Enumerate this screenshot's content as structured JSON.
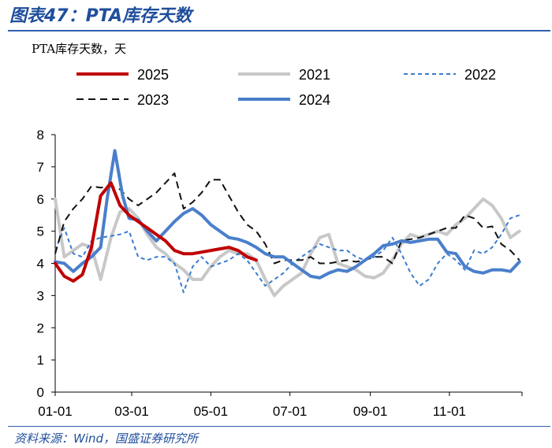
{
  "header": {
    "title": "图表47：PTA库存天数"
  },
  "footer": {
    "source": "资料来源：Wind，国盛证券研究所"
  },
  "chart_data": {
    "type": "line",
    "unit_label": "PTA库存天数，天",
    "ylim": [
      0,
      8
    ],
    "yticks": [
      "0",
      "1",
      "2",
      "3",
      "4",
      "5",
      "6",
      "7",
      "8"
    ],
    "xticks": [
      "01-01",
      "03-01",
      "05-01",
      "07-01",
      "09-01",
      "11-01"
    ],
    "xtick_days": [
      0,
      59,
      120,
      181,
      243,
      304
    ],
    "xdomain": [
      0,
      360
    ],
    "legend": "top",
    "series": [
      {
        "name": "2025",
        "color": "#c00000",
        "dash": "solid",
        "width": 4,
        "points": [
          [
            0,
            4.0
          ],
          [
            7,
            3.6
          ],
          [
            14,
            3.45
          ],
          [
            21,
            3.65
          ],
          [
            28,
            4.5
          ],
          [
            35,
            6.1
          ],
          [
            43,
            6.5
          ],
          [
            50,
            5.8
          ],
          [
            57,
            5.5
          ],
          [
            64,
            5.3
          ],
          [
            71,
            5.1
          ],
          [
            78,
            4.9
          ],
          [
            85,
            4.7
          ],
          [
            92,
            4.4
          ],
          [
            99,
            4.3
          ],
          [
            106,
            4.3
          ],
          [
            113,
            4.35
          ],
          [
            120,
            4.4
          ],
          [
            127,
            4.45
          ],
          [
            134,
            4.5
          ],
          [
            141,
            4.4
          ],
          [
            148,
            4.2
          ],
          [
            155,
            4.1
          ]
        ]
      },
      {
        "name": "2021",
        "color": "#c8c8c8",
        "dash": "solid",
        "width": 4,
        "points": [
          [
            0,
            6.0
          ],
          [
            7,
            4.2
          ],
          [
            14,
            4.4
          ],
          [
            21,
            4.6
          ],
          [
            28,
            4.5
          ],
          [
            35,
            3.5
          ],
          [
            43,
            4.8
          ],
          [
            50,
            5.6
          ],
          [
            57,
            5.7
          ],
          [
            64,
            5.4
          ],
          [
            71,
            4.9
          ],
          [
            78,
            4.5
          ],
          [
            85,
            4.3
          ],
          [
            92,
            4.0
          ],
          [
            99,
            3.8
          ],
          [
            106,
            3.5
          ],
          [
            113,
            3.5
          ],
          [
            120,
            3.9
          ],
          [
            127,
            4.2
          ],
          [
            134,
            4.4
          ],
          [
            141,
            4.3
          ],
          [
            148,
            4.3
          ],
          [
            155,
            4.1
          ],
          [
            162,
            3.5
          ],
          [
            169,
            3.0
          ],
          [
            176,
            3.3
          ],
          [
            183,
            3.5
          ],
          [
            190,
            3.7
          ],
          [
            197,
            4.3
          ],
          [
            204,
            4.8
          ],
          [
            211,
            4.9
          ],
          [
            218,
            4.0
          ],
          [
            225,
            3.9
          ],
          [
            232,
            3.8
          ],
          [
            239,
            3.6
          ],
          [
            246,
            3.55
          ],
          [
            253,
            3.7
          ],
          [
            260,
            4.1
          ],
          [
            267,
            4.6
          ],
          [
            274,
            4.9
          ],
          [
            281,
            4.8
          ],
          [
            288,
            4.9
          ],
          [
            295,
            5.0
          ],
          [
            302,
            4.9
          ],
          [
            309,
            5.2
          ],
          [
            316,
            5.4
          ],
          [
            323,
            5.7
          ],
          [
            330,
            6.0
          ],
          [
            337,
            5.8
          ],
          [
            344,
            5.4
          ],
          [
            351,
            4.8
          ],
          [
            358,
            5.0
          ]
        ]
      },
      {
        "name": "2022",
        "color": "#3a7cd0",
        "dash": "5,4",
        "width": 2,
        "points": [
          [
            0,
            4.4
          ],
          [
            7,
            5.1
          ],
          [
            14,
            4.3
          ],
          [
            21,
            4.2
          ],
          [
            28,
            4.7
          ],
          [
            35,
            4.8
          ],
          [
            43,
            4.85
          ],
          [
            50,
            4.9
          ],
          [
            57,
            5.0
          ],
          [
            64,
            4.2
          ],
          [
            71,
            4.1
          ],
          [
            78,
            4.2
          ],
          [
            85,
            4.2
          ],
          [
            92,
            4.0
          ],
          [
            99,
            3.1
          ],
          [
            106,
            3.9
          ],
          [
            113,
            4.2
          ],
          [
            120,
            3.9
          ],
          [
            127,
            4.0
          ],
          [
            134,
            4.1
          ],
          [
            141,
            4.3
          ],
          [
            148,
            4.1
          ],
          [
            155,
            3.7
          ],
          [
            162,
            3.3
          ],
          [
            169,
            3.5
          ],
          [
            176,
            3.7
          ],
          [
            183,
            4.0
          ],
          [
            190,
            4.2
          ],
          [
            197,
            4.4
          ],
          [
            204,
            4.6
          ],
          [
            211,
            4.5
          ],
          [
            218,
            4.4
          ],
          [
            225,
            4.4
          ],
          [
            232,
            4.2
          ],
          [
            239,
            4.1
          ],
          [
            246,
            4.2
          ],
          [
            253,
            4.4
          ],
          [
            260,
            4.8
          ],
          [
            267,
            4.3
          ],
          [
            274,
            3.7
          ],
          [
            281,
            3.3
          ],
          [
            288,
            3.5
          ],
          [
            295,
            4.0
          ],
          [
            302,
            4.3
          ],
          [
            309,
            4.1
          ],
          [
            316,
            3.8
          ],
          [
            323,
            4.4
          ],
          [
            330,
            4.3
          ],
          [
            337,
            4.5
          ],
          [
            344,
            4.9
          ],
          [
            351,
            5.4
          ],
          [
            358,
            5.5
          ]
        ]
      },
      {
        "name": "2023",
        "color": "#111111",
        "dash": "9,6",
        "width": 2,
        "points": [
          [
            0,
            4.3
          ],
          [
            7,
            5.3
          ],
          [
            14,
            5.7
          ],
          [
            21,
            6.0
          ],
          [
            28,
            6.4
          ],
          [
            35,
            6.35
          ],
          [
            43,
            6.4
          ],
          [
            50,
            6.3
          ],
          [
            57,
            6.0
          ],
          [
            64,
            5.8
          ],
          [
            71,
            6.0
          ],
          [
            78,
            6.2
          ],
          [
            85,
            6.5
          ],
          [
            92,
            6.8
          ],
          [
            99,
            5.7
          ],
          [
            106,
            5.9
          ],
          [
            113,
            6.2
          ],
          [
            120,
            6.6
          ],
          [
            127,
            6.6
          ],
          [
            134,
            6.1
          ],
          [
            141,
            5.6
          ],
          [
            148,
            5.2
          ],
          [
            155,
            5.0
          ],
          [
            162,
            4.6
          ],
          [
            169,
            4.0
          ],
          [
            176,
            4.1
          ],
          [
            183,
            4.1
          ],
          [
            190,
            4.1
          ],
          [
            197,
            4.2
          ],
          [
            204,
            4.0
          ],
          [
            211,
            4.0
          ],
          [
            218,
            4.05
          ],
          [
            225,
            4.1
          ],
          [
            232,
            4.05
          ],
          [
            239,
            4.1
          ],
          [
            246,
            4.2
          ],
          [
            253,
            4.2
          ],
          [
            260,
            4.0
          ],
          [
            267,
            4.7
          ],
          [
            274,
            4.75
          ],
          [
            281,
            4.8
          ],
          [
            288,
            4.9
          ],
          [
            295,
            5.0
          ],
          [
            302,
            5.1
          ],
          [
            309,
            5.1
          ],
          [
            316,
            5.5
          ],
          [
            323,
            5.4
          ],
          [
            330,
            5.1
          ],
          [
            337,
            5.15
          ],
          [
            344,
            4.6
          ],
          [
            351,
            4.4
          ],
          [
            358,
            4.1
          ]
        ]
      },
      {
        "name": "2024",
        "color": "#4a7fcb",
        "dash": "solid",
        "width": 4,
        "points": [
          [
            0,
            4.05
          ],
          [
            7,
            4.0
          ],
          [
            14,
            3.75
          ],
          [
            21,
            4.0
          ],
          [
            28,
            4.2
          ],
          [
            35,
            4.5
          ],
          [
            40,
            6.0
          ],
          [
            46,
            7.5
          ],
          [
            52,
            6.1
          ],
          [
            57,
            5.4
          ],
          [
            64,
            5.35
          ],
          [
            71,
            5.0
          ],
          [
            78,
            4.7
          ],
          [
            85,
            5.0
          ],
          [
            92,
            5.3
          ],
          [
            99,
            5.55
          ],
          [
            106,
            5.7
          ],
          [
            113,
            5.5
          ],
          [
            120,
            5.2
          ],
          [
            127,
            5.0
          ],
          [
            134,
            4.8
          ],
          [
            141,
            4.75
          ],
          [
            148,
            4.65
          ],
          [
            155,
            4.5
          ],
          [
            162,
            4.3
          ],
          [
            169,
            4.2
          ],
          [
            176,
            4.2
          ],
          [
            183,
            4.0
          ],
          [
            190,
            3.8
          ],
          [
            197,
            3.6
          ],
          [
            204,
            3.55
          ],
          [
            211,
            3.7
          ],
          [
            218,
            3.8
          ],
          [
            225,
            3.75
          ],
          [
            232,
            3.9
          ],
          [
            239,
            4.1
          ],
          [
            246,
            4.3
          ],
          [
            253,
            4.55
          ],
          [
            260,
            4.6
          ],
          [
            267,
            4.7
          ],
          [
            274,
            4.65
          ],
          [
            281,
            4.7
          ],
          [
            288,
            4.75
          ],
          [
            295,
            4.75
          ],
          [
            302,
            4.35
          ],
          [
            309,
            4.3
          ],
          [
            316,
            3.9
          ],
          [
            323,
            3.75
          ],
          [
            330,
            3.7
          ],
          [
            337,
            3.8
          ],
          [
            344,
            3.8
          ],
          [
            351,
            3.75
          ],
          [
            358,
            4.05
          ]
        ]
      }
    ]
  }
}
